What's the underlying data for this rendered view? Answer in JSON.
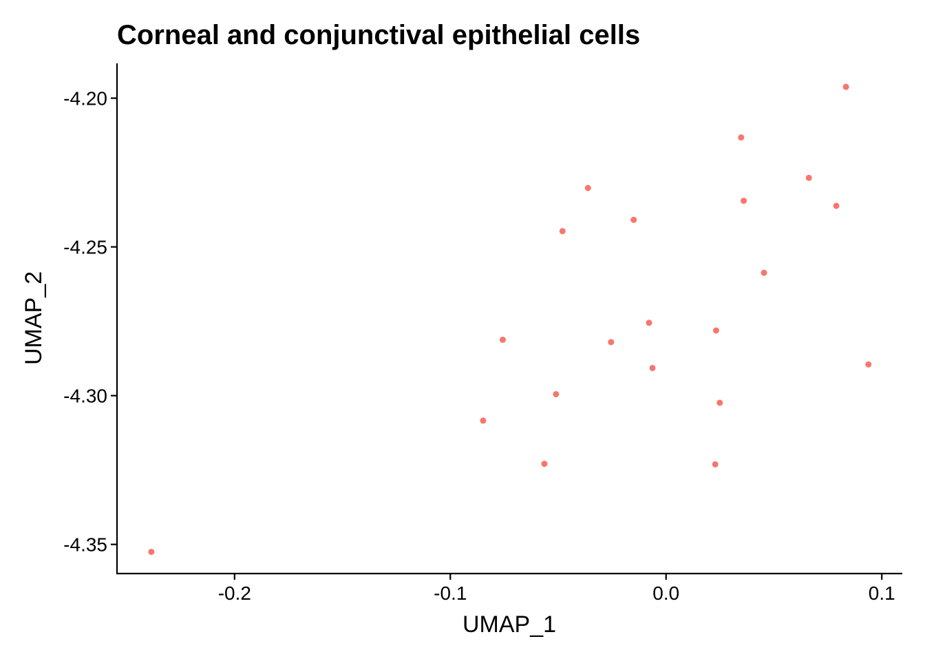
{
  "chart_data": {
    "type": "scatter",
    "title": "Corneal and conjunctival epithelial cells",
    "xlabel": "UMAP_1",
    "ylabel": "UMAP_2",
    "xlim": [
      -0.2545,
      0.1095
    ],
    "ylim": [
      -4.3598,
      -4.1883
    ],
    "xticks": [
      -0.2,
      -0.1,
      0.0,
      0.1
    ],
    "xtick_labels": [
      "-0.2",
      "-0.1",
      "0.0",
      "0.1"
    ],
    "yticks": [
      -4.2,
      -4.25,
      -4.3,
      -4.35
    ],
    "ytick_labels": [
      "-4.20",
      "-4.25",
      "-4.30",
      "-4.35"
    ],
    "grid": false,
    "legend": "none",
    "point_color": "#F8766D",
    "series": [
      {
        "x": [
          0.0834,
          0.0348,
          0.0662,
          0.036,
          0.0789,
          -0.0362,
          -0.015,
          -0.048,
          0.0454,
          -0.0079,
          0.0232,
          -0.0757,
          -0.0255,
          -0.0063,
          0.0938,
          -0.051,
          0.0249,
          -0.0848,
          -0.0564,
          0.0228,
          -0.2386
        ],
        "y": [
          -4.1962,
          -4.2132,
          -4.2268,
          -4.2345,
          -4.2362,
          -4.2302,
          -4.2409,
          -4.2447,
          -4.2587,
          -4.2755,
          -4.2781,
          -4.2812,
          -4.282,
          -4.2907,
          -4.2895,
          -4.2995,
          -4.3024,
          -4.3084,
          -4.3229,
          -4.3231,
          -4.3525
        ]
      }
    ]
  }
}
